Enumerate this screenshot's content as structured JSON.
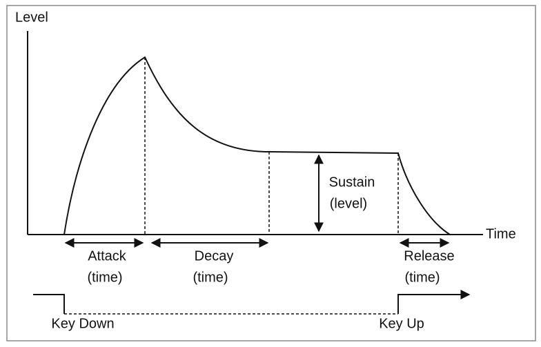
{
  "axes": {
    "y_label": "Level",
    "x_label": "Time"
  },
  "phases": [
    {
      "name": "Attack",
      "detail": "(time)"
    },
    {
      "name": "Decay",
      "detail": "(time)"
    },
    {
      "name": "Sustain",
      "detail": "(level)"
    },
    {
      "name": "Release",
      "detail": "(time)"
    }
  ],
  "gate": {
    "key_down": "Key Down",
    "key_up": "Key Up"
  }
}
